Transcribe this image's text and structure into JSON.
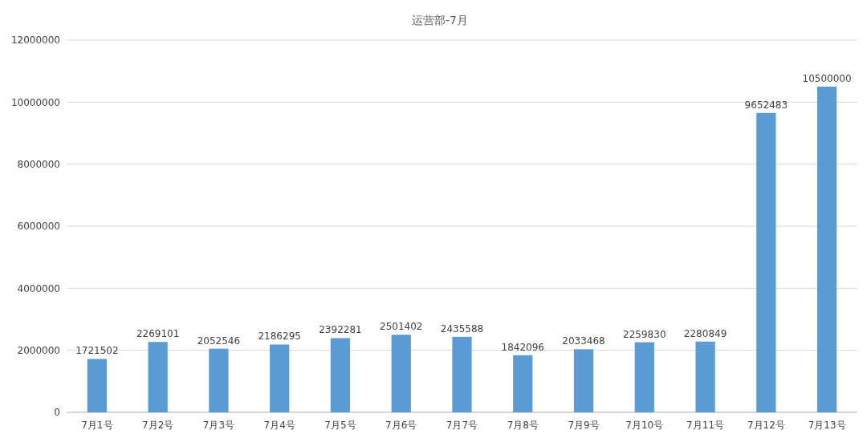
{
  "chart_data": {
    "type": "bar",
    "title": "运营部-7月",
    "categories": [
      "7月1号",
      "7月2号",
      "7月3号",
      "7月4号",
      "7月5号",
      "7月6号",
      "7月7号",
      "7月8号",
      "7月9号",
      "7月10号",
      "7月11号",
      "7月12号",
      "7月13号"
    ],
    "values": [
      1721502,
      2269101,
      2052546,
      2186295,
      2392281,
      2501402,
      2435588,
      1842096,
      2033468,
      2259830,
      2280849,
      9652483,
      10500000
    ],
    "color": "#5b9bd5",
    "ylim": [
      0,
      12000000
    ],
    "yticks": [
      0,
      2000000,
      4000000,
      6000000,
      8000000,
      10000000,
      12000000
    ],
    "grid": "y",
    "data_labels": true
  }
}
